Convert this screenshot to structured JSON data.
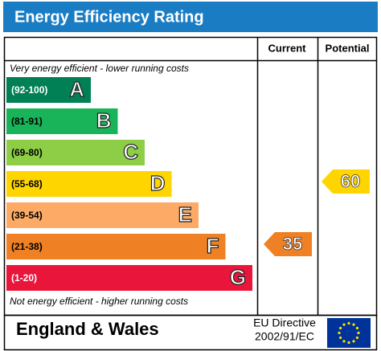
{
  "title": "Energy Efficiency Rating",
  "headers": [
    "Current",
    "Potential"
  ],
  "top_note": "Very energy efficient - lower running costs",
  "bottom_note": "Not energy efficient - higher running costs",
  "bands": [
    {
      "range": "(92-100)",
      "letter": "A",
      "color": "#008054"
    },
    {
      "range": "(81-91)",
      "letter": "B",
      "color": "#19b459"
    },
    {
      "range": "(69-80)",
      "letter": "C",
      "color": "#8dce46"
    },
    {
      "range": "(55-68)",
      "letter": "D",
      "color": "#ffd500"
    },
    {
      "range": "(39-54)",
      "letter": "E",
      "color": "#fcaa65"
    },
    {
      "range": "(21-38)",
      "letter": "F",
      "color": "#ef8023"
    },
    {
      "range": "(1-20)",
      "letter": "G",
      "color": "#e9153b"
    }
  ],
  "current": 35,
  "potential": 60,
  "footer": {
    "region": "England & Wales",
    "directive": [
      "EU Directive",
      "2002/91/EC"
    ]
  }
}
